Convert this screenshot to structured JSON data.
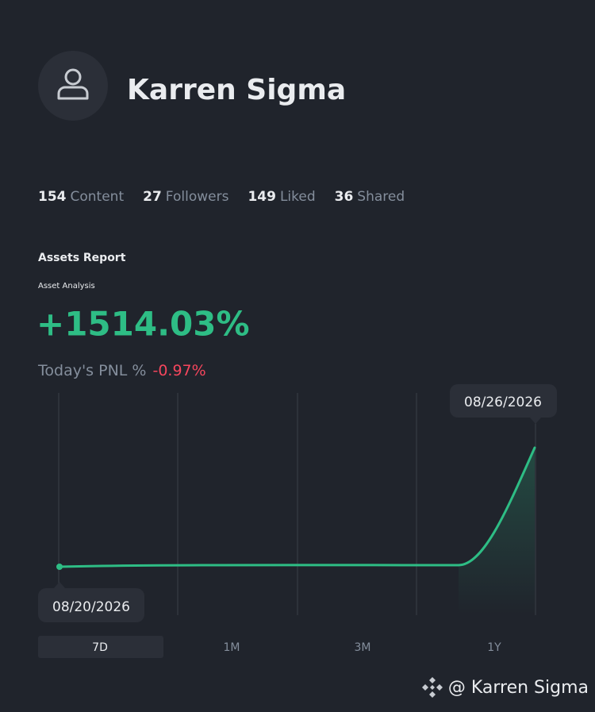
{
  "profile": {
    "name": "Karren Sigma"
  },
  "stats": [
    {
      "count": 154,
      "label": "Content"
    },
    {
      "count": 27,
      "label": "Followers"
    },
    {
      "count": 149,
      "label": "Liked"
    },
    {
      "count": 36,
      "label": "Shared"
    }
  ],
  "report": {
    "title": "Assets Report",
    "subtitle": "Asset Analysis",
    "change": "+1514.03%",
    "pnl_label": "Today's PNL %",
    "pnl_value": "-0.97%"
  },
  "chart": {
    "start_date": "08/20/2026",
    "end_date": "08/26/2026"
  },
  "ranges": [
    "7D",
    "1M",
    "3M",
    "1Y"
  ],
  "watermark": "@ Karren Sigma"
}
